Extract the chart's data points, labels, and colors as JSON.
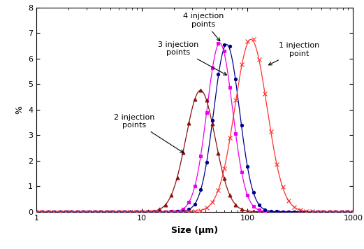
{
  "xlabel": "Size (μm)",
  "ylabel": "%",
  "ylim": [
    0,
    8
  ],
  "xlim": [
    1,
    1000
  ],
  "yticks": [
    0,
    1,
    2,
    3,
    4,
    5,
    6,
    7,
    8
  ],
  "series": [
    {
      "label": "2 injection points",
      "color": "#8B1010",
      "marker": "^",
      "markersize": 3.5,
      "peak_y": 4.75,
      "mu_log": 3.58,
      "sigma_log": 0.32
    },
    {
      "label": "4 injection points",
      "color": "#EE00EE",
      "marker": "s",
      "markersize": 3.5,
      "peak_y": 6.6,
      "mu_log": 4.0,
      "sigma_log": 0.28
    },
    {
      "label": "3 injection points",
      "color": "#00008B",
      "marker": "o",
      "markersize": 3.0,
      "peak_y": 6.55,
      "mu_log": 4.15,
      "sigma_log": 0.28
    },
    {
      "label": "1 injection point",
      "color": "#FF3030",
      "marker": "x",
      "markersize": 4.0,
      "peak_y": 6.75,
      "mu_log": 4.68,
      "sigma_log": 0.35
    }
  ],
  "annotations": [
    {
      "text": "4 injection\npoints",
      "xy_x": 57,
      "xy_y": 6.6,
      "xt_x": 38,
      "xt_y": 7.25,
      "ha": "center"
    },
    {
      "text": "3 injection\npoints",
      "xy_x": 67,
      "xy_y": 5.3,
      "xt_x": 22,
      "xt_y": 6.15,
      "ha": "center"
    },
    {
      "text": "2 injection\npoints",
      "xy_x": 26,
      "xy_y": 2.25,
      "xt_x": 8.5,
      "xt_y": 3.3,
      "ha": "center"
    },
    {
      "text": "1 injection\npoint",
      "xy_x": 150,
      "xy_y": 5.7,
      "xt_x": 310,
      "xt_y": 6.1,
      "ha": "center"
    }
  ]
}
